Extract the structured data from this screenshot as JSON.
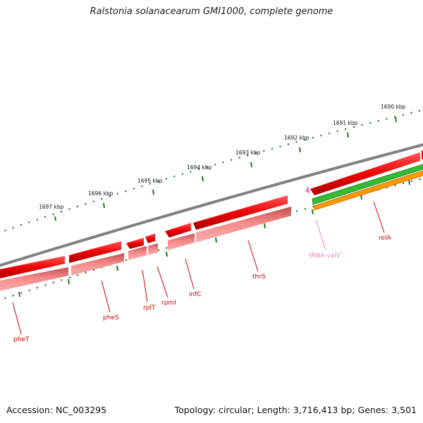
{
  "title": "Ralstonia solanacearum GMI1000, complete genome",
  "footer": {
    "accession": "Accession: NC_003295",
    "summary": "Topology: circular; Length: 3,716,413 bp; Genes: 3,501"
  },
  "scale_labels": [
    "1697 kbp",
    "1696 kbp",
    "1695 kbp",
    "1694 kbp",
    "1693 kbp",
    "1692 kbp",
    "1691 kbp",
    "1690 kbp"
  ],
  "genes": [
    {
      "name": "pheT",
      "color": "#cc0000"
    },
    {
      "name": "pheS",
      "color": "#cc0000"
    },
    {
      "name": "rplT",
      "color": "#cc0000"
    },
    {
      "name": "rpmI",
      "color": "#cc0000"
    },
    {
      "name": "infC",
      "color": "#cc0000"
    },
    {
      "name": "thrS",
      "color": "#cc0000"
    },
    {
      "name": "tRNA-valV",
      "color": "#f080c0"
    },
    {
      "name": "relA",
      "color": "#cc0000"
    }
  ],
  "colors": {
    "backbone": "#7a7a7a",
    "gene_red": "#ee0000",
    "gene_pink": "#f08080",
    "rna_green": "#33bb33",
    "rna_orange": "#ff9900",
    "ticks": "#1a7a1a"
  }
}
